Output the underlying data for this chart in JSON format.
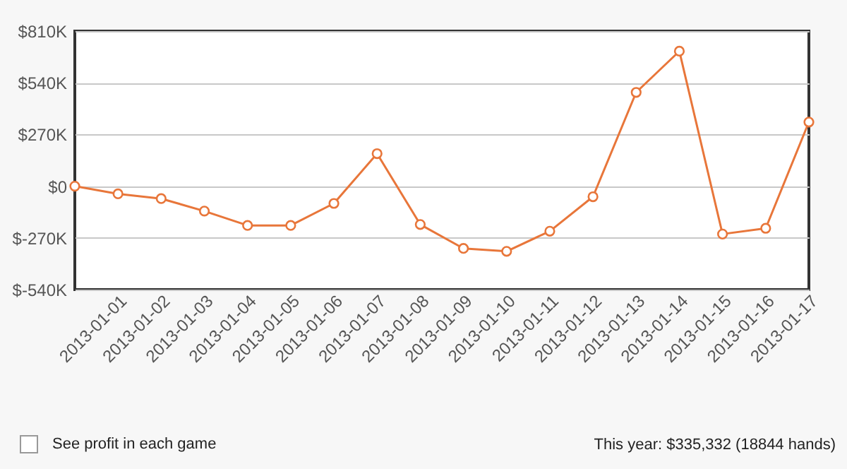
{
  "chart_data": {
    "type": "line",
    "categories": [
      null,
      "2013-01-01",
      "2013-01-02",
      "2013-01-03",
      "2013-01-04",
      "2013-01-05",
      "2013-01-06",
      "2013-01-07",
      "2013-01-08",
      "2013-01-09",
      "2013-01-10",
      "2013-01-11",
      "2013-01-12",
      "2013-01-13",
      "2013-01-14",
      "2013-01-15",
      "2013-01-16",
      "2013-01-17"
    ],
    "series": [
      {
        "color": "#e8763a",
        "values": [
          0,
          -40000,
          -65000,
          -130000,
          -205000,
          -205000,
          -90000,
          170000,
          -200000,
          -325000,
          -340000,
          -235000,
          -55000,
          490000,
          705000,
          -250000,
          -220000,
          335000
        ]
      }
    ],
    "ylim": [
      -540000,
      810000
    ],
    "yticks": [
      {
        "value": -540000,
        "label": "$-540K"
      },
      {
        "value": -270000,
        "label": "$-270K"
      },
      {
        "value": 0,
        "label": "$0"
      },
      {
        "value": 270000,
        "label": "$270K"
      },
      {
        "value": 540000,
        "label": "$540K"
      },
      {
        "value": 810000,
        "label": "$810K"
      }
    ],
    "grid": "y",
    "marker": "circle",
    "line_style": "solid",
    "annotations": [
      "See profit in each game",
      "This year: $335,332 (18844 hands)"
    ]
  }
}
